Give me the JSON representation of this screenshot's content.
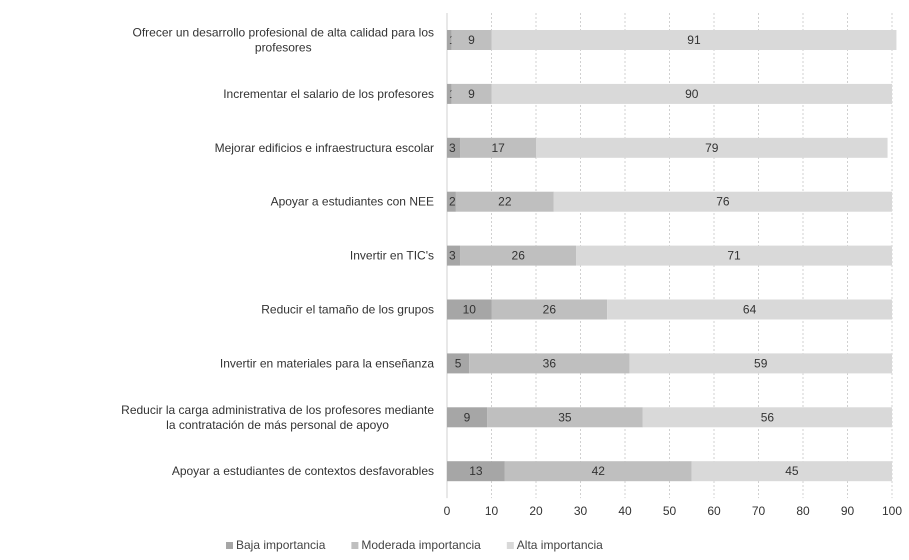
{
  "chart_data": {
    "type": "bar",
    "orientation": "horizontal",
    "stacked": true,
    "categories": [
      [
        "Ofrecer un desarrollo profesional de alta calidad para los",
        "profesores"
      ],
      [
        "Incrementar el salario de los profesores"
      ],
      [
        "Mejorar edificios e infraestructura escolar"
      ],
      [
        "Apoyar a estudiantes con NEE"
      ],
      [
        "Invertir en TIC's"
      ],
      [
        "Reducir el tamaño de los grupos"
      ],
      [
        "Invertir en materiales para la enseñanza"
      ],
      [
        "Reducir la carga administrativa de los profesores mediante",
        "la contratación de más personal de apoyo"
      ],
      [
        "Apoyar a estudiantes de contextos desfavorables"
      ]
    ],
    "series": [
      {
        "name": "Baja importancia",
        "color": "#a6a6a6",
        "values": [
          1,
          1,
          3,
          2,
          3,
          10,
          5,
          9,
          13
        ]
      },
      {
        "name": "Moderada importancia",
        "color": "#bfbfbf",
        "values": [
          9,
          9,
          17,
          22,
          26,
          26,
          36,
          35,
          42
        ]
      },
      {
        "name": "Alta importancia",
        "color": "#d9d9d9",
        "values": [
          91,
          90,
          79,
          76,
          71,
          64,
          59,
          56,
          45
        ]
      }
    ],
    "xlim": [
      0,
      100
    ],
    "xticks": [
      0,
      10,
      20,
      30,
      40,
      50,
      60,
      70,
      80,
      90,
      100
    ],
    "legend_position": "bottom",
    "grid": "vertical"
  }
}
